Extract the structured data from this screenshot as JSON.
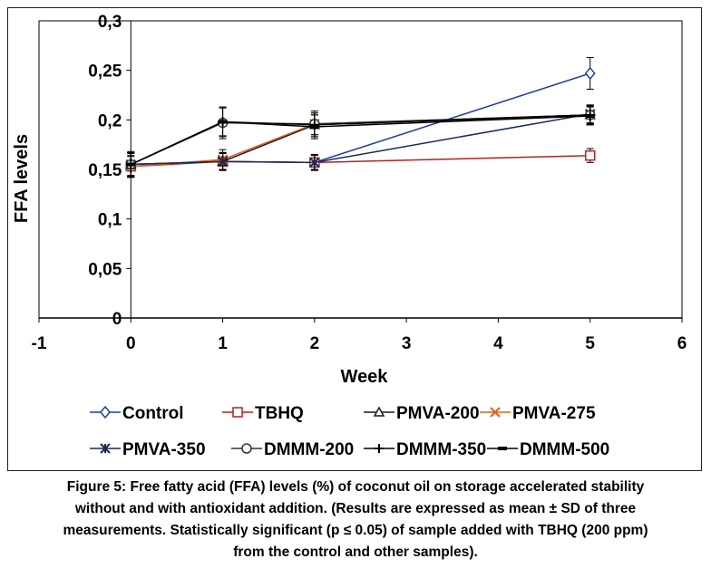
{
  "chart_data": {
    "type": "line",
    "xlabel": "Week",
    "ylabel": "FFA levels",
    "xlim": [
      -1,
      6
    ],
    "ylim": [
      0,
      0.3
    ],
    "xticks": [
      -1,
      0,
      1,
      2,
      3,
      4,
      5,
      6
    ],
    "yticks": [
      0,
      0.05,
      0.1,
      0.15,
      0.2,
      0.25,
      0.3
    ],
    "x_tick_labels": [
      "-1",
      "0",
      "1",
      "2",
      "3",
      "4",
      "5",
      "6"
    ],
    "y_tick_labels": [
      "0",
      "0,05",
      "0,1",
      "0,15",
      "0,2",
      "0,25",
      "0,3"
    ],
    "grid": false,
    "legend_position": "bottom",
    "x": [
      0,
      1,
      2,
      5
    ],
    "series": [
      {
        "name": "Control",
        "color": "#1f3f9f",
        "marker": "diamond",
        "values": [
          0.155,
          0.158,
          0.157,
          0.247
        ],
        "err": [
          0.012,
          0.008,
          0.007,
          0.016
        ]
      },
      {
        "name": "TBHQ",
        "color": "#b22222",
        "marker": "square",
        "values": [
          0.153,
          0.158,
          0.157,
          0.164
        ],
        "err": [
          0.01,
          0.009,
          0.008,
          0.007
        ]
      },
      {
        "name": "PMVA-200",
        "color": "#1a1a1a",
        "marker": "triangle",
        "values": [
          0.155,
          0.158,
          0.195,
          0.205
        ],
        "err": [
          0.012,
          0.009,
          0.01,
          0.009
        ]
      },
      {
        "name": "PMVA-275",
        "color": "#e0601a",
        "marker": "x",
        "values": [
          0.153,
          0.16,
          0.196,
          0.205
        ],
        "err": [
          0.011,
          0.01,
          0.011,
          0.01
        ]
      },
      {
        "name": "PMVA-350",
        "color": "#1a2a55",
        "marker": "star",
        "values": [
          0.155,
          0.158,
          0.157,
          0.206
        ],
        "err": [
          0.011,
          0.009,
          0.008,
          0.009
        ]
      },
      {
        "name": "DMMM-200",
        "color": "#2b3b2b",
        "marker": "circle",
        "values": [
          0.155,
          0.197,
          0.196,
          0.205
        ],
        "err": [
          0.013,
          0.016,
          0.013,
          0.01
        ]
      },
      {
        "name": "DMMM-350",
        "color": "#000000",
        "marker": "plus",
        "values": [
          0.155,
          0.198,
          0.195,
          0.205
        ],
        "err": [
          0.012,
          0.015,
          0.012,
          0.009
        ]
      },
      {
        "name": "DMMM-500",
        "color": "#000000",
        "marker": "dash",
        "values": [
          0.155,
          0.198,
          0.193,
          0.204
        ],
        "err": [
          0.012,
          0.014,
          0.012,
          0.009
        ]
      }
    ]
  },
  "caption": {
    "line1": "Figure 5: Free fatty acid (FFA) levels (%) of coconut oil on storage accelerated stability",
    "line2": "without and with antioxidant addition. (Results are expressed as mean ± SD of three",
    "line3": "measurements. Statistically significant (p ≤ 0.05) of sample added with TBHQ (200 ppm)",
    "line4": "from the control and other samples)."
  }
}
